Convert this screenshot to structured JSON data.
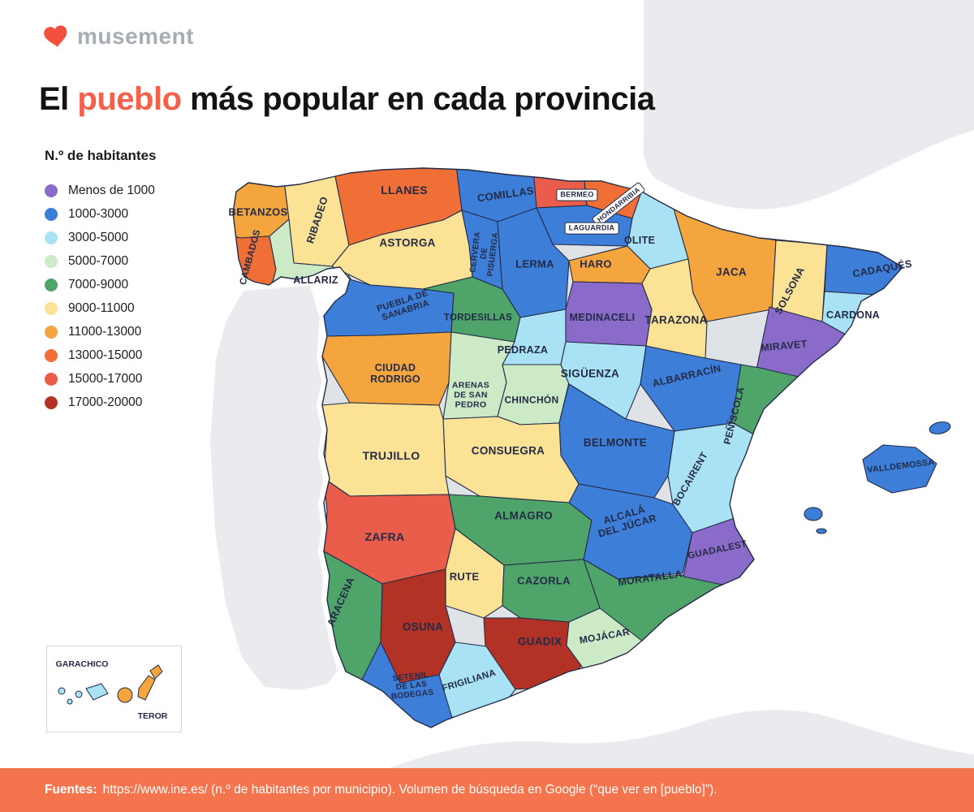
{
  "brand": {
    "logo_text": "musement",
    "heart_color": "#f4503e"
  },
  "title": {
    "prefix": "El ",
    "highlight": "pueblo",
    "suffix": " más popular en cada provincia",
    "highlight_color": "#f4604a"
  },
  "legend": {
    "heading": "N.º de habitantes",
    "items": [
      {
        "label": "Menos de 1000",
        "color": "#8a6bc9"
      },
      {
        "label": "1000-3000",
        "color": "#3d7ed8"
      },
      {
        "label": "3000-5000",
        "color": "#a8e2f4"
      },
      {
        "label": "5000-7000",
        "color": "#cdeac6"
      },
      {
        "label": "7000-9000",
        "color": "#4ea469"
      },
      {
        "label": "9000-11000",
        "color": "#fbe295"
      },
      {
        "label": "11000-13000",
        "color": "#f5a53d"
      },
      {
        "label": "13000-15000",
        "color": "#ef6f37"
      },
      {
        "label": "15000-17000",
        "color": "#eb5d4b"
      },
      {
        "label": "17000-20000",
        "color": "#b23226"
      }
    ]
  },
  "map": {
    "border_color": "#232b47",
    "provinces": [
      {
        "id": "betanzos",
        "lines": [
          "BETANZOS"
        ],
        "bucket": "11000-13000"
      },
      {
        "id": "ribadeo",
        "lines": [
          "RIBADEO"
        ],
        "bucket": "9000-11000"
      },
      {
        "id": "cambados",
        "lines": [
          "CAMBADOS"
        ],
        "bucket": "13000-15000"
      },
      {
        "id": "allariz",
        "lines": [
          "ALLARIZ"
        ],
        "bucket": "5000-7000"
      },
      {
        "id": "llanes",
        "lines": [
          "LLANES"
        ],
        "bucket": "13000-15000"
      },
      {
        "id": "comillas",
        "lines": [
          "COMILLAS"
        ],
        "bucket": "1000-3000"
      },
      {
        "id": "bermeo",
        "lines": [
          "BERMEO"
        ],
        "bucket": "15000-17000"
      },
      {
        "id": "hondarribia",
        "lines": [
          "HONDARRIBIA"
        ],
        "bucket": "13000-15000"
      },
      {
        "id": "laguardia",
        "lines": [
          "LAGUARDIA"
        ],
        "bucket": "1000-3000"
      },
      {
        "id": "olite",
        "lines": [
          "OLITE"
        ],
        "bucket": "3000-5000"
      },
      {
        "id": "astorga",
        "lines": [
          "ASTORGA"
        ],
        "bucket": "9000-11000"
      },
      {
        "id": "cervera-de-pisuerga",
        "lines": [
          "CERVERA",
          "DE",
          "PISUERGA"
        ],
        "bucket": "1000-3000"
      },
      {
        "id": "lerma",
        "lines": [
          "LERMA"
        ],
        "bucket": "1000-3000"
      },
      {
        "id": "haro",
        "lines": [
          "HARO"
        ],
        "bucket": "11000-13000"
      },
      {
        "id": "medinaceli",
        "lines": [
          "MEDINACELI"
        ],
        "bucket": "Menos de 1000"
      },
      {
        "id": "tarazona",
        "lines": [
          "TARAZONA"
        ],
        "bucket": "9000-11000"
      },
      {
        "id": "jaca",
        "lines": [
          "JACA"
        ],
        "bucket": "11000-13000"
      },
      {
        "id": "solsona",
        "lines": [
          "SOLSONA"
        ],
        "bucket": "9000-11000"
      },
      {
        "id": "cadaques",
        "lines": [
          "CADAQUÉS"
        ],
        "bucket": "1000-3000"
      },
      {
        "id": "cardona",
        "lines": [
          "CARDONA"
        ],
        "bucket": "3000-5000"
      },
      {
        "id": "miravet",
        "lines": [
          "MIRAVET"
        ],
        "bucket": "Menos de 1000"
      },
      {
        "id": "puebla-de-sanabria",
        "lines": [
          "PUEBLA DE",
          "SANABRIA"
        ],
        "bucket": "1000-3000"
      },
      {
        "id": "tordesillas",
        "lines": [
          "TORDESILLAS"
        ],
        "bucket": "7000-9000"
      },
      {
        "id": "pedraza",
        "lines": [
          "PEDRAZA"
        ],
        "bucket": "3000-5000"
      },
      {
        "id": "ciudad-rodrigo",
        "lines": [
          "CIUDAD",
          "RODRIGO"
        ],
        "bucket": "11000-13000"
      },
      {
        "id": "arenas-de-san-pedro",
        "lines": [
          "ARENAS",
          "DE SAN",
          "PEDRO"
        ],
        "bucket": "5000-7000"
      },
      {
        "id": "chinchon",
        "lines": [
          "CHINCHÓN"
        ],
        "bucket": "5000-7000"
      },
      {
        "id": "siguenza",
        "lines": [
          "SIGÜENZA"
        ],
        "bucket": "3000-5000"
      },
      {
        "id": "albarracin",
        "lines": [
          "ALBARRACÍN"
        ],
        "bucket": "1000-3000"
      },
      {
        "id": "peniscola",
        "lines": [
          "PEÑÍSCOLA"
        ],
        "bucket": "7000-9000"
      },
      {
        "id": "belmonte",
        "lines": [
          "BELMONTE"
        ],
        "bucket": "1000-3000"
      },
      {
        "id": "bocairent",
        "lines": [
          "BOCAIRENT"
        ],
        "bucket": "3000-5000"
      },
      {
        "id": "consuegra",
        "lines": [
          "CONSUEGRA"
        ],
        "bucket": "9000-11000"
      },
      {
        "id": "trujillo",
        "lines": [
          "TRUJILLO"
        ],
        "bucket": "9000-11000"
      },
      {
        "id": "zafra",
        "lines": [
          "ZAFRA"
        ],
        "bucket": "15000-17000"
      },
      {
        "id": "almagro",
        "lines": [
          "ALMAGRO"
        ],
        "bucket": "7000-9000"
      },
      {
        "id": "alcala-del-jucar",
        "lines": [
          "ALCALÁ",
          "DEL JÚCAR"
        ],
        "bucket": "1000-3000"
      },
      {
        "id": "moratalla",
        "lines": [
          "MORATALLA"
        ],
        "bucket": "7000-9000"
      },
      {
        "id": "guadalest",
        "lines": [
          "GUADALEST"
        ],
        "bucket": "Menos de 1000"
      },
      {
        "id": "rute",
        "lines": [
          "RUTE"
        ],
        "bucket": "9000-11000"
      },
      {
        "id": "cazorla",
        "lines": [
          "CAZORLA"
        ],
        "bucket": "7000-9000"
      },
      {
        "id": "aracena",
        "lines": [
          "ARACENA"
        ],
        "bucket": "7000-9000"
      },
      {
        "id": "osuna",
        "lines": [
          "OSUNA"
        ],
        "bucket": "17000-20000"
      },
      {
        "id": "guadix",
        "lines": [
          "GUADIX"
        ],
        "bucket": "17000-20000"
      },
      {
        "id": "mojacar",
        "lines": [
          "MOJÁCAR"
        ],
        "bucket": "5000-7000"
      },
      {
        "id": "frigiliana",
        "lines": [
          "FRIGILIANA"
        ],
        "bucket": "3000-5000"
      },
      {
        "id": "setenil-de-las-bodegas",
        "lines": [
          "SETENIL",
          "DE LAS",
          "BODEGAS"
        ],
        "bucket": "1000-3000"
      },
      {
        "id": "valldemossa",
        "lines": [
          "VALLDEMOSSA"
        ],
        "bucket": "1000-3000"
      }
    ]
  },
  "inset": {
    "garachico": "GARACHICO",
    "teror": "TEROR"
  },
  "footer": {
    "bold": "Fuentes:",
    "text": "https://www.ine.es/ (n.º de habitantes por municipio). Volumen de búsqueda en Google (“que ver en [pueblo]”)."
  }
}
